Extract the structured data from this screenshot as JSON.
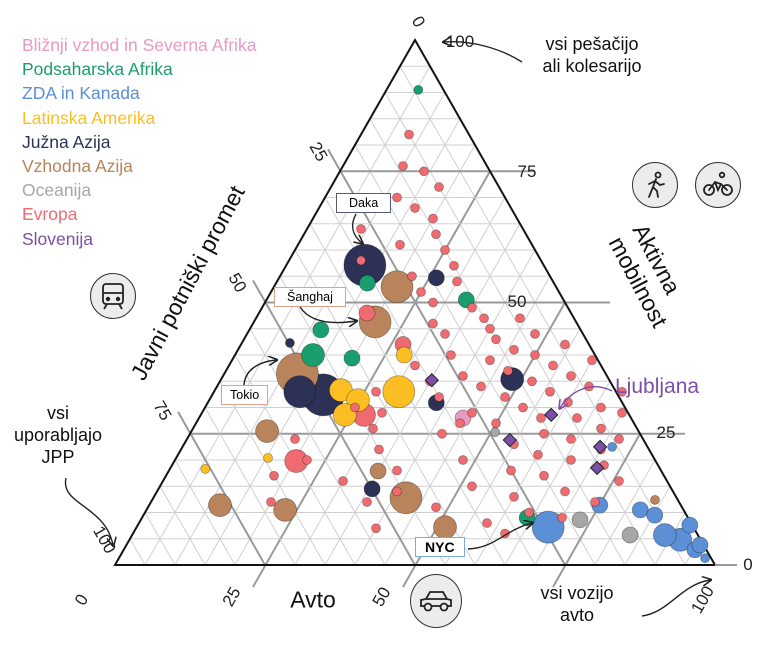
{
  "chart_data": {
    "type": "scatter",
    "subtype": "ternary",
    "title": "",
    "axes": {
      "active": {
        "label": "Aktivna mobilnost",
        "ticks": [
          {
            "value": 100,
            "label": "100"
          },
          {
            "value": 75,
            "label": "75"
          },
          {
            "value": 50,
            "label": "50"
          },
          {
            "value": 25,
            "label": "25"
          },
          {
            "value": 0,
            "label": "0"
          }
        ]
      },
      "public": {
        "label": "Javni potniški promet",
        "ticks": [
          {
            "value": 0,
            "label": "0"
          },
          {
            "value": 25,
            "label": "25"
          },
          {
            "value": 50,
            "label": "50"
          },
          {
            "value": 75,
            "label": "75"
          },
          {
            "value": 100,
            "label": "100"
          }
        ]
      },
      "car": {
        "label": "Avto",
        "ticks": [
          {
            "value": 0,
            "label": "0"
          },
          {
            "value": 25,
            "label": "25"
          },
          {
            "value": 50,
            "label": "50"
          },
          {
            "value": 100,
            "label": "100"
          }
        ]
      }
    },
    "grid": true,
    "grid_step": 5,
    "legend_position": "top-left",
    "legend": [
      {
        "name": "Bližnji vzhod in Severna Afrika",
        "color": "#e89ac0"
      },
      {
        "name": "Podsaharska Afrika",
        "color": "#1a9e6e"
      },
      {
        "name": "ZDA in Kanada",
        "color": "#5b8fd6"
      },
      {
        "name": "Latinska Amerika",
        "color": "#fbbf24"
      },
      {
        "name": "Južna Azija",
        "color": "#2e3156"
      },
      {
        "name": "Vzhodna Azija",
        "color": "#b9835c"
      },
      {
        "name": "Oceanija",
        "color": "#a6a6a6"
      },
      {
        "name": "Evropa",
        "color": "#ef6b6f"
      },
      {
        "name": "Slovenija",
        "color": "#7b4fa8"
      }
    ],
    "point_fields": [
      "active_pct",
      "car_pct",
      "size",
      "region_index"
    ],
    "points": [
      [
        82,
        8,
        1,
        7
      ],
      [
        76,
        10,
        1,
        7
      ],
      [
        75,
        14,
        1,
        7
      ],
      [
        72,
        18,
        1,
        7
      ],
      [
        70,
        12,
        1,
        7
      ],
      [
        68,
        16,
        1,
        7
      ],
      [
        66,
        20,
        1,
        7
      ],
      [
        64,
        9,
        1,
        7
      ],
      [
        63,
        22,
        1,
        7
      ],
      [
        61,
        17,
        1,
        7
      ],
      [
        60,
        25,
        1,
        7
      ],
      [
        58,
        12,
        1,
        7
      ],
      [
        57,
        28,
        1,
        7
      ],
      [
        55,
        22,
        1,
        7
      ],
      [
        54,
        30,
        1,
        7
      ],
      [
        52,
        25,
        1,
        7
      ],
      [
        50,
        28,
        1,
        7
      ],
      [
        49,
        35,
        1,
        7
      ],
      [
        48,
        18,
        2,
        7
      ],
      [
        47,
        38,
        1,
        7
      ],
      [
        46,
        30,
        1,
        7
      ],
      [
        45,
        40,
        1,
        7
      ],
      [
        44,
        33,
        1,
        7
      ],
      [
        43,
        42,
        1,
        7
      ],
      [
        42,
        27,
        2,
        7
      ],
      [
        41,
        46,
        1,
        7
      ],
      [
        40,
        36,
        1,
        7
      ],
      [
        40,
        50,
        1,
        7
      ],
      [
        39,
        43,
        1,
        7
      ],
      [
        38,
        31,
        1,
        7
      ],
      [
        38,
        54,
        1,
        7
      ],
      [
        37,
        47,
        1,
        7
      ],
      [
        36,
        40,
        1,
        7
      ],
      [
        36,
        58,
        1,
        7
      ],
      [
        35,
        52,
        1,
        7
      ],
      [
        34,
        44,
        1,
        7
      ],
      [
        34,
        62,
        1,
        7
      ],
      [
        33,
        56,
        1,
        7
      ],
      [
        32,
        49,
        1,
        7
      ],
      [
        32,
        38,
        1,
        7
      ],
      [
        31,
        60,
        1,
        7
      ],
      [
        30,
        53,
        1,
        7
      ],
      [
        30,
        66,
        1,
        7
      ],
      [
        29,
        45,
        1,
        7
      ],
      [
        28,
        57,
        1,
        7
      ],
      [
        28,
        63,
        1,
        7
      ],
      [
        27,
        50,
        1,
        7
      ],
      [
        26,
        68,
        1,
        7
      ],
      [
        25,
        59,
        1,
        7
      ],
      [
        25,
        42,
        1,
        7
      ],
      [
        24,
        64,
        1,
        7
      ],
      [
        23,
        55,
        1,
        7
      ],
      [
        22,
        70,
        1,
        7
      ],
      [
        21,
        60,
        1,
        7
      ],
      [
        20,
        48,
        1,
        7
      ],
      [
        20,
        66,
        1,
        7
      ],
      [
        19,
        72,
        1,
        7
      ],
      [
        18,
        57,
        1,
        7
      ],
      [
        17,
        63,
        1,
        7
      ],
      [
        16,
        76,
        1,
        7
      ],
      [
        15,
        52,
        1,
        7
      ],
      [
        14,
        68,
        1,
        7
      ],
      [
        13,
        60,
        1,
        7
      ],
      [
        12,
        74,
        1,
        7
      ],
      [
        11,
        48,
        1,
        7
      ],
      [
        10,
        64,
        1,
        7
      ],
      [
        9,
        70,
        1,
        7
      ],
      [
        8,
        58,
        1,
        7
      ],
      [
        6,
        62,
        1,
        7
      ],
      [
        14,
        40,
        1,
        7
      ],
      [
        18,
        38,
        1,
        7
      ],
      [
        22,
        33,
        1,
        7
      ],
      [
        26,
        30,
        1,
        7
      ],
      [
        30,
        25,
        1,
        7
      ],
      [
        12,
        36,
        1,
        7
      ],
      [
        16,
        30,
        1,
        7
      ],
      [
        7,
        40,
        1,
        7
      ],
      [
        20,
        22,
        1,
        7
      ],
      [
        27,
        44,
        1,
        7
      ],
      [
        35,
        35,
        1,
        7
      ],
      [
        42,
        54,
        1,
        7
      ],
      [
        44,
        48,
        1,
        7
      ],
      [
        47,
        44,
        1,
        7
      ],
      [
        39,
        60,
        1,
        7
      ],
      [
        33,
        68,
        1,
        7
      ],
      [
        24,
        72,
        1,
        7
      ],
      [
        29,
        70,
        1,
        7
      ],
      [
        24,
        18,
        1,
        7
      ],
      [
        17,
        18,
        1,
        7
      ],
      [
        12,
        20,
        1,
        7
      ],
      [
        29,
        30,
        1,
        7
      ],
      [
        33,
        27,
        1,
        7
      ],
      [
        19.8,
        20.3,
        3,
        7
      ],
      [
        28.6,
        27.2,
        3,
        7
      ],
      [
        57.1,
        13.1,
        5,
        4
      ],
      [
        54.7,
        26.2,
        2,
        4
      ],
      [
        42.3,
        8.0,
        1,
        4
      ],
      [
        32.4,
        18.5,
        5,
        4
      ],
      [
        33,
        14.3,
        4,
        4
      ],
      [
        30.9,
        38.1,
        2,
        4
      ],
      [
        35.4,
        48.5,
        3,
        4
      ],
      [
        14.5,
        35.6,
        2,
        4
      ],
      [
        53.7,
        15.2,
        2,
        1
      ],
      [
        44.8,
        11.9,
        2,
        1
      ],
      [
        40,
        13,
        3,
        1
      ],
      [
        39.4,
        19.8,
        2,
        1
      ],
      [
        90.5,
        5.3,
        1,
        1
      ],
      [
        50.5,
        33.3,
        2,
        1
      ],
      [
        9,
        64.2,
        2,
        1
      ],
      [
        53,
        20.5,
        4,
        5
      ],
      [
        46.3,
        20.2,
        4,
        5
      ],
      [
        36.4,
        12.2,
        5,
        5
      ],
      [
        25.5,
        12.6,
        3,
        5
      ],
      [
        11.4,
        11.8,
        3,
        5
      ],
      [
        10.5,
        23.1,
        3,
        5
      ],
      [
        12.8,
        42.1,
        4,
        5
      ],
      [
        17.9,
        34.9,
        2,
        5
      ],
      [
        7.2,
        51.4,
        3,
        5
      ],
      [
        12.4,
        83.8,
        1,
        5
      ],
      [
        33.3,
        21,
        3,
        3
      ],
      [
        31.4,
        24.8,
        3,
        3
      ],
      [
        33,
        30.8,
        4,
        3
      ],
      [
        40,
        28.2,
        2,
        3
      ],
      [
        28.6,
        24,
        3,
        3
      ],
      [
        18.3,
        5.9,
        1,
        3
      ],
      [
        20.4,
        15.3,
        1,
        3
      ],
      [
        28,
        44,
        2,
        0
      ],
      [
        8.6,
        73.2,
        2,
        6
      ],
      [
        5.7,
        83,
        2,
        6
      ],
      [
        25.3,
        50.7,
        1,
        6
      ],
      [
        7.2,
        68.6,
        4,
        2
      ],
      [
        4.8,
        91.8,
        3,
        2
      ],
      [
        5.7,
        88.8,
        3,
        2
      ],
      [
        2.9,
        95.2,
        2,
        2
      ],
      [
        1.3,
        97.7,
        1,
        2
      ],
      [
        7.6,
        92,
        2,
        2
      ],
      [
        3.8,
        95.6,
        2,
        2
      ],
      [
        10.5,
        82.3,
        2,
        2
      ],
      [
        11.4,
        75.1,
        2,
        2
      ],
      [
        9.5,
        85.2,
        2,
        2
      ],
      [
        22.5,
        71.6,
        1,
        2
      ],
      [
        35.2,
        35.2,
        1,
        8
      ],
      [
        28.6,
        58.4,
        1,
        8
      ],
      [
        23.8,
        53.9,
        1,
        8
      ],
      [
        22.5,
        69.6,
        1,
        8
      ],
      [
        18.5,
        71.1,
        1,
        8
      ]
    ],
    "annotations": [
      {
        "label": "Daka",
        "active_pct": 57.1,
        "car_pct": 13.1
      },
      {
        "label": "Šanghaj",
        "active_pct": 46.3,
        "car_pct": 20.2
      },
      {
        "label": "Tokio",
        "active_pct": 36.4,
        "car_pct": 12.2
      },
      {
        "label": "NYC",
        "active_pct": 7.2,
        "car_pct": 68.6
      },
      {
        "label": "Ljubljana",
        "active_pct": 28.6,
        "car_pct": 58.4
      }
    ],
    "corner_notes": {
      "active": "vsi pešačijo ali kolesarijo",
      "public_line1": "vsi",
      "public_line2": "uporabljajo",
      "public_line3": "JPP",
      "car_line1": "vsi vozijo",
      "car_line2": "avto",
      "active_line1": "vsi pešačijo",
      "active_line2": "ali kolesarijo"
    }
  },
  "icons": [
    "walking-person-icon",
    "bicycle-icon",
    "train-icon",
    "car-icon"
  ]
}
